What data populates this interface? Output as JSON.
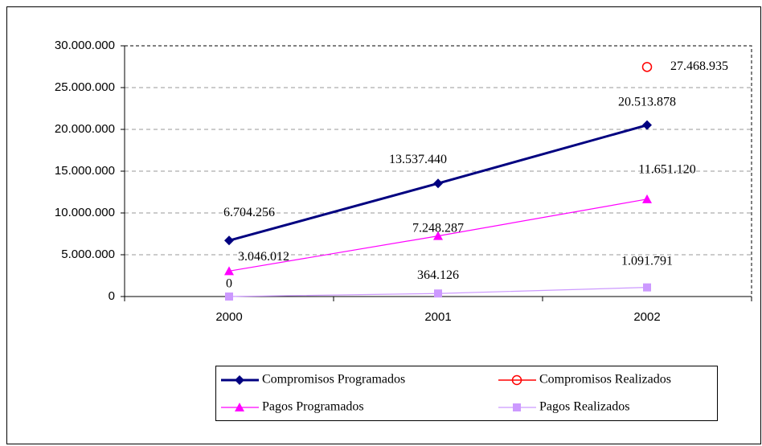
{
  "chart_data": {
    "type": "line",
    "categories": [
      "2000",
      "2001",
      "2002"
    ],
    "series": [
      {
        "name": "Compromisos Programados",
        "color": "#000080",
        "marker": "diamond",
        "values": [
          6704256,
          13537440,
          20513878
        ],
        "value_labels": [
          "6.704.256",
          "13.537.440",
          "20.513.878"
        ]
      },
      {
        "name": "Compromisos Realizados",
        "color": "#ff0000",
        "marker": "circle",
        "values": [
          null,
          null,
          27468935
        ],
        "value_labels": [
          null,
          null,
          "27.468.935"
        ]
      },
      {
        "name": "Pagos Programados",
        "color": "#ff00ff",
        "marker": "triangle",
        "values": [
          3046012,
          7248287,
          11651120
        ],
        "value_labels": [
          "3.046.012",
          "7.248.287",
          "11.651.120"
        ]
      },
      {
        "name": "Pagos Realizados",
        "color": "#cc99ff",
        "marker": "square",
        "values": [
          0,
          364126,
          1091791
        ],
        "value_labels": [
          "0",
          "364.126",
          "1.091.791"
        ]
      }
    ],
    "ylim": [
      0,
      30000000
    ],
    "yticks": [
      0,
      {
        "value": 5000000,
        "label": "5.000.000"
      },
      {
        "value": 10000000,
        "label": "10.000.000"
      },
      {
        "value": 15000000,
        "label": "15.000.000"
      },
      {
        "value": 20000000,
        "label": "20.000.000"
      },
      {
        "value": 25000000,
        "label": "25.000.000"
      },
      {
        "value": 30000000,
        "label": "30.000.000"
      }
    ],
    "grid": true,
    "legend": "bottom"
  }
}
